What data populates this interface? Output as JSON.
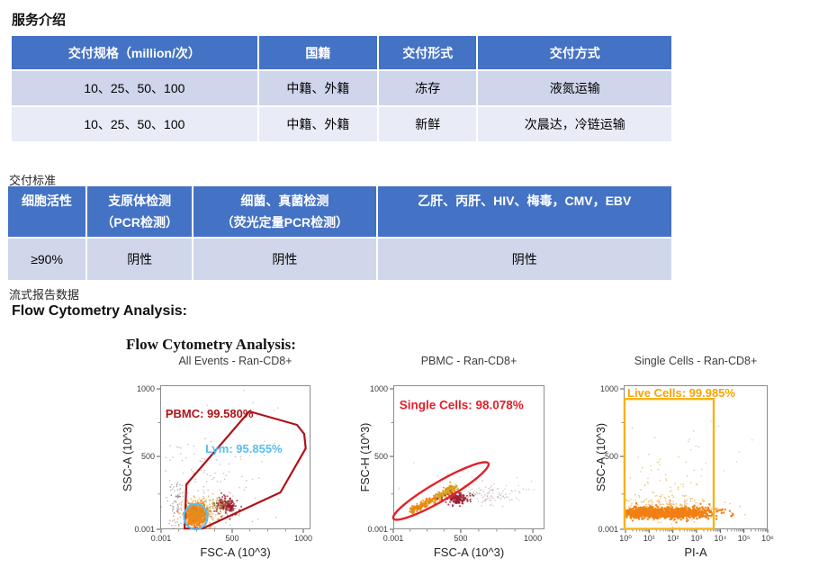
{
  "page": {
    "section1_title": "服务介绍",
    "table1": {
      "headers": [
        "交付规格（million/次）",
        "国籍",
        "交付形式",
        "交付方式"
      ],
      "rows": [
        [
          "10、25、50、100",
          "中籍、外籍",
          "冻存",
          "液氮运输"
        ],
        [
          "10、25、50、100",
          "中籍、外籍",
          "新鲜",
          "次晨达，冷链运输"
        ]
      ]
    },
    "section2_title": "交付标准",
    "table2": {
      "headers": [
        {
          "line1": "细胞活性",
          "line2": ""
        },
        {
          "line1": "支原体检测",
          "line2": "（PCR检测）"
        },
        {
          "line1": "细菌、真菌检测",
          "line2": "（荧光定量PCR检测）"
        },
        {
          "line1": "乙肝、丙肝、HIV、梅毒，CMV，EBV",
          "line2": ""
        }
      ],
      "row": [
        "≥90%",
        "阴性",
        "阴性",
        "阴性"
      ]
    },
    "section3_title": "流式报告数据",
    "flow_heading": "Flow Cytometry Analysis:"
  },
  "figure": {
    "title": "Flow Cytometry Analysis:"
  },
  "colors": {
    "table_header_blue": "#4472C4",
    "table_row_light": "#CFD5EA",
    "table_row_lighter": "#E9EBF6",
    "table2_row": "#D0D7EA",
    "gate_dark_red": "#AF1217",
    "gate_bright_red": "#E3202A",
    "gate_light_blue": "#58BEEE",
    "gate_orange": "#F5B31A",
    "dots_orange": "#F07E13"
  },
  "chart_data": [
    {
      "type": "scatter",
      "seed": 7,
      "title": "All Events - Ran-CD8+",
      "xlabel": "FSC-A (10^3)",
      "ylabel": "SSC-A (10^3)",
      "xscale": "linear",
      "xticks": [
        {
          "label": "0.001",
          "pos": 0.006
        },
        {
          "label": "500",
          "pos": 0.479
        },
        {
          "label": "1000",
          "pos": 0.952
        }
      ],
      "xminor": [
        0.124,
        0.243,
        0.361,
        0.597,
        0.716,
        0.834
      ],
      "yticks": [
        {
          "label": "1000",
          "pos": 0.025
        },
        {
          "label": "500",
          "pos": 0.494
        },
        {
          "label": "0.001",
          "pos": 1.0
        }
      ],
      "yminor": [
        0.26,
        0.755
      ],
      "gates": [
        {
          "shape": "polygon",
          "color": "#AF1217",
          "width": 2.2,
          "points": [
            [
              0.593,
              0.181
            ],
            [
              0.91,
              0.275
            ],
            [
              0.958,
              0.338
            ],
            [
              0.968,
              0.438
            ],
            [
              0.8,
              0.744
            ],
            [
              0.281,
              0.995
            ],
            [
              0.162,
              0.995
            ],
            [
              0.174,
              0.688
            ]
          ],
          "label": {
            "text": "PBMC: 99.580%",
            "value": 99.58,
            "x": 0.035,
            "y": 0.225,
            "color": "#AF1217",
            "size": 13
          }
        },
        {
          "shape": "ellipse",
          "color": "#58BEEE",
          "width": 2.2,
          "cx": 0.2365,
          "cy": 0.9125,
          "rxpx": 13,
          "rypx": 14,
          "rot": 0,
          "label": {
            "text": "Lym: 95.855%",
            "value": 95.855,
            "x": 0.3,
            "y": 0.469,
            "color": "#58BDF0",
            "size": 13
          }
        }
      ],
      "clusters": [
        {
          "kind": "gauss",
          "n": 420,
          "cx": 0.235,
          "cy": 0.9,
          "sx": 0.03,
          "sy": 0.032,
          "color": "#F07E13",
          "alpha": 0.95,
          "r": 1.2
        },
        {
          "kind": "gauss",
          "n": 260,
          "cx": 0.24,
          "cy": 0.895,
          "sx": 0.048,
          "sy": 0.052,
          "color": "#ED8F1C",
          "alpha": 0.55,
          "r": 1.0
        },
        {
          "kind": "gauss",
          "n": 170,
          "cx": 0.445,
          "cy": 0.835,
          "sx": 0.034,
          "sy": 0.026,
          "color": "#9C1B2F",
          "alpha": 0.8,
          "r": 1.0
        },
        {
          "kind": "gauss",
          "n": 130,
          "cx": 0.34,
          "cy": 0.865,
          "sx": 0.075,
          "sy": 0.038,
          "color": "#B99C37",
          "alpha": 0.65,
          "r": 0.9
        },
        {
          "kind": "gauss",
          "n": 120,
          "cx": 0.3,
          "cy": 0.7,
          "sx": 0.17,
          "sy": 0.17,
          "color": "#8F6F74",
          "alpha": 0.45,
          "r": 0.8
        },
        {
          "kind": "gauss",
          "n": 70,
          "cx": 0.1,
          "cy": 0.83,
          "sx": 0.025,
          "sy": 0.1,
          "color": "#7A5A66",
          "alpha": 0.5,
          "r": 0.8
        },
        {
          "kind": "gauss",
          "n": 25,
          "cx": 0.55,
          "cy": 0.45,
          "sx": 0.25,
          "sy": 0.22,
          "color": "#97737A",
          "alpha": 0.4,
          "r": 0.8
        }
      ]
    },
    {
      "type": "scatter",
      "seed": 11,
      "title": "PBMC - Ran-CD8+",
      "xlabel": "FSC-A (10^3)",
      "ylabel": "FSC-H (10^3)",
      "xscale": "linear",
      "xticks": [
        {
          "label": "0.001",
          "pos": 0.0
        },
        {
          "label": "500",
          "pos": 0.446
        },
        {
          "label": "1000",
          "pos": 0.923
        }
      ],
      "xminor": [
        0.112,
        0.223,
        0.335,
        0.565,
        0.684,
        0.804
      ],
      "yticks": [
        {
          "label": "1000",
          "pos": 0.025
        },
        {
          "label": "500",
          "pos": 0.494
        },
        {
          "label": "0.001",
          "pos": 1.0
        }
      ],
      "yminor": [
        0.26,
        0.755
      ],
      "gates": [
        {
          "shape": "ellipse",
          "color": "#E3202A",
          "width": 2.4,
          "cx": 0.315,
          "cy": 0.734,
          "rxpx": 61,
          "rypx": 10.5,
          "rot": -30.2,
          "label": {
            "text": "Single Cells: 98.078%",
            "value": 98.078,
            "x": 0.04,
            "y": 0.165,
            "color": "#E3202A",
            "size": 13.5
          }
        }
      ],
      "clusters": [
        {
          "kind": "streak",
          "n": 330,
          "x1": 0.115,
          "y1": 0.875,
          "x2": 0.4,
          "y2": 0.715,
          "s": 0.012,
          "color": "#E8880B",
          "alpha": 0.9,
          "r": 1.0
        },
        {
          "kind": "streak",
          "n": 120,
          "x1": 0.3,
          "y1": 0.77,
          "x2": 0.42,
          "y2": 0.705,
          "s": 0.01,
          "color": "#D3A91F",
          "alpha": 0.8,
          "r": 0.9
        },
        {
          "kind": "gauss",
          "n": 150,
          "cx": 0.43,
          "cy": 0.785,
          "sx": 0.038,
          "sy": 0.02,
          "color": "#9C1B2F",
          "alpha": 0.85,
          "r": 1.0
        },
        {
          "kind": "gauss",
          "n": 100,
          "cx": 0.6,
          "cy": 0.765,
          "sx": 0.13,
          "sy": 0.03,
          "color": "#9D8780",
          "alpha": 0.45,
          "r": 0.8
        },
        {
          "kind": "gauss",
          "n": 40,
          "cx": 0.52,
          "cy": 0.72,
          "sx": 0.22,
          "sy": 0.06,
          "color": "#9D8780",
          "alpha": 0.35,
          "r": 0.8
        }
      ]
    },
    {
      "type": "scatter",
      "seed": 13,
      "title": "Single Cells - Ran-CD8+",
      "xlabel": "PI-A",
      "ylabel": "SSC-A (10^3)",
      "xscale": "log",
      "xticks": [
        {
          "label": "10⁰",
          "pos": 0.0125
        },
        {
          "label": "10¹",
          "pos": 0.177
        },
        {
          "label": "10²",
          "pos": 0.342
        },
        {
          "label": "10³",
          "pos": 0.506
        },
        {
          "label": "10⁴",
          "pos": 0.671
        },
        {
          "label": "10⁵",
          "pos": 0.835
        },
        {
          "label": "10⁶",
          "pos": 1.0
        }
      ],
      "xlog": {
        "start": 0.0125,
        "decade": 0.16458,
        "decades": 6
      },
      "yticks": [
        {
          "label": "1000",
          "pos": 0.025
        },
        {
          "label": "500",
          "pos": 0.494
        },
        {
          "label": "0.001",
          "pos": 1.0
        }
      ],
      "yminor": [
        0.26,
        0.755
      ],
      "gates": [
        {
          "shape": "rect",
          "color": "#F5B31A",
          "width": 2.4,
          "x0": 0.006,
          "y0": 0.095,
          "x1": 0.625,
          "y1": 0.997,
          "label": {
            "text": "Live Cells: 99.985%",
            "value": 99.985,
            "x": 0.025,
            "y": 0.082,
            "color": "#F5A400",
            "size": 13
          }
        }
      ],
      "clusters": [
        {
          "kind": "gauss",
          "n": 800,
          "cx": 0.32,
          "cy": 0.885,
          "sx": 0.16,
          "sy": 0.02,
          "color": "#F07E13",
          "alpha": 0.95,
          "r": 1.2
        },
        {
          "kind": "gauss",
          "n": 300,
          "cx": 0.12,
          "cy": 0.885,
          "sx": 0.07,
          "sy": 0.016,
          "color": "#F07E13",
          "alpha": 0.9,
          "r": 1.1
        },
        {
          "kind": "gauss",
          "n": 250,
          "cx": 0.3,
          "cy": 0.86,
          "sx": 0.17,
          "sy": 0.045,
          "color": "#F1880E",
          "alpha": 0.5,
          "r": 0.9
        },
        {
          "kind": "gauss",
          "n": 70,
          "cx": 0.28,
          "cy": 0.7,
          "sx": 0.17,
          "sy": 0.13,
          "color": "#F1920D",
          "alpha": 0.5,
          "r": 0.8
        },
        {
          "kind": "gauss",
          "n": 14,
          "cx": 0.35,
          "cy": 0.45,
          "sx": 0.25,
          "sy": 0.25,
          "color": "#8AA3C9",
          "alpha": 0.55,
          "r": 0.8
        },
        {
          "kind": "gauss",
          "n": 8,
          "cx": 0.82,
          "cy": 0.55,
          "sx": 0.1,
          "sy": 0.3,
          "color": "#ADA0A0",
          "alpha": 0.5,
          "r": 0.8
        }
      ]
    }
  ]
}
